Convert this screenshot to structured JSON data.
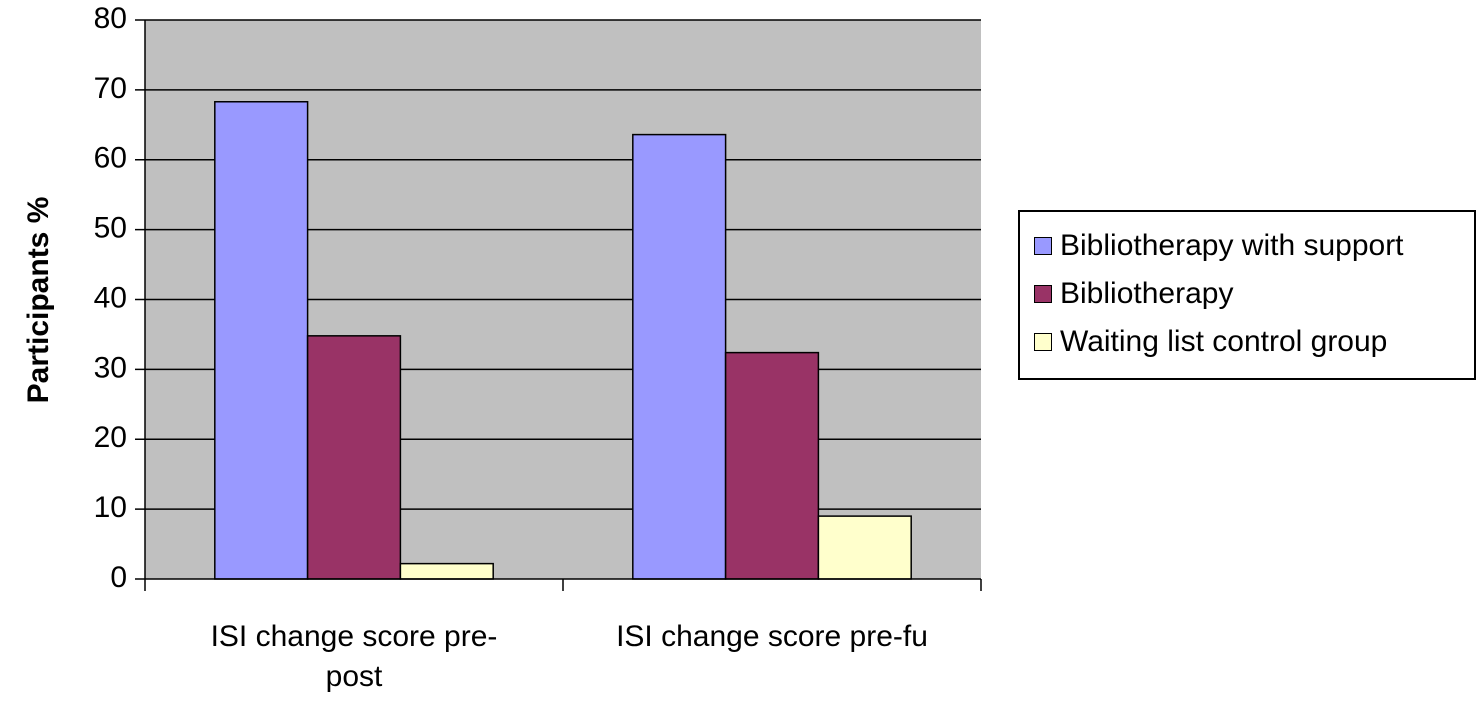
{
  "chart_data": {
    "type": "bar",
    "categories": [
      "ISI change score pre-post",
      "ISI change score pre-fu"
    ],
    "category_lines": [
      [
        "ISI change score pre-",
        "post"
      ],
      [
        "ISI change score pre-fu"
      ]
    ],
    "series": [
      {
        "name": "Bibliotherapy with support",
        "values": [
          68.3,
          63.6
        ],
        "color": "#9999FF"
      },
      {
        "name": "Bibliotherapy",
        "values": [
          34.8,
          32.4
        ],
        "color": "#993366"
      },
      {
        "name": "Waiting list control group",
        "values": [
          2.2,
          9.0
        ],
        "color": "#FFFFCC"
      }
    ],
    "ylabel": "Participants %",
    "xlabel": "",
    "ylim": [
      0,
      80
    ],
    "yticks": [
      0,
      10,
      20,
      30,
      40,
      50,
      60,
      70,
      80
    ],
    "grid": true,
    "plot_background": "#C0C0C0",
    "legend_position": "right"
  }
}
